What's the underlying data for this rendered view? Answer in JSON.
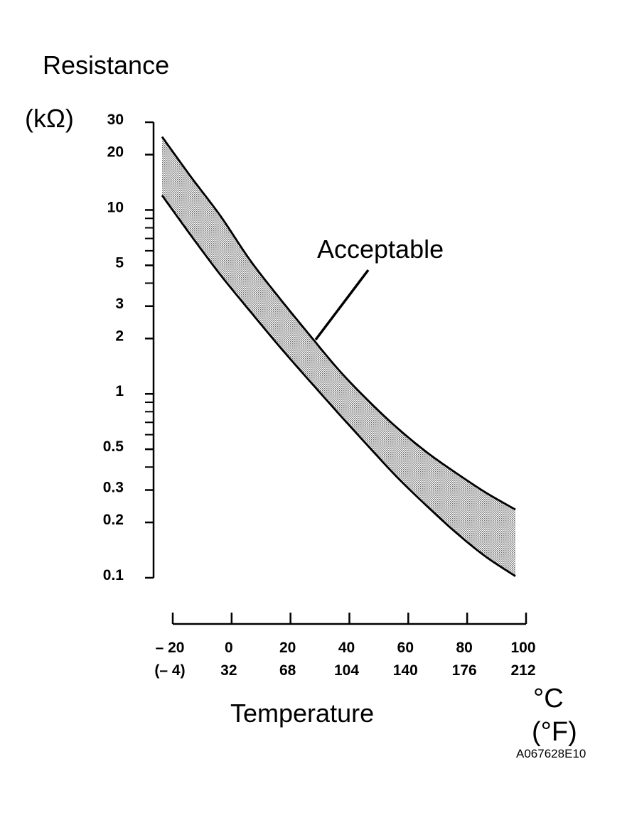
{
  "chart_data": {
    "type": "area",
    "ylabel_line1": "Resistance",
    "ylabel_line2": "(kΩ)",
    "xlabel": "Temperature",
    "unit_c": "°C",
    "unit_f": "(°F)",
    "figure_code": "A067628E10",
    "annotation": "Acceptable",
    "y_scale": "log",
    "ylim": [
      0.1,
      30
    ],
    "xlim": [
      -20,
      100
    ],
    "y_ticks": [
      {
        "value": 30,
        "label": "30"
      },
      {
        "value": 20,
        "label": "20"
      },
      {
        "value": 10,
        "label": "10"
      },
      {
        "value": 5,
        "label": "5"
      },
      {
        "value": 3,
        "label": "3"
      },
      {
        "value": 2,
        "label": "2"
      },
      {
        "value": 1,
        "label": "1"
      },
      {
        "value": 0.5,
        "label": "0.5"
      },
      {
        "value": 0.3,
        "label": "0.3"
      },
      {
        "value": 0.2,
        "label": "0.2"
      },
      {
        "value": 0.1,
        "label": "0.1"
      }
    ],
    "y_minor_ticks": [
      9,
      8,
      7,
      6,
      4,
      0.9,
      0.8,
      0.7,
      0.6,
      0.4
    ],
    "x_ticks": [
      {
        "value": -20,
        "label_c": "– 20",
        "label_f": "(– 4)"
      },
      {
        "value": 0,
        "label_c": "0",
        "label_f": "32"
      },
      {
        "value": 20,
        "label_c": "20",
        "label_f": "68"
      },
      {
        "value": 40,
        "label_c": "40",
        "label_f": "104"
      },
      {
        "value": 60,
        "label_c": "60",
        "label_f": "140"
      },
      {
        "value": 80,
        "label_c": "80",
        "label_f": "176"
      },
      {
        "value": 100,
        "label_c": "100",
        "label_f": "212"
      }
    ],
    "series": [
      {
        "x": [
          -20,
          -10,
          0,
          10,
          20,
          30,
          40,
          50,
          60,
          70,
          80,
          90,
          100
        ],
        "values": [
          25,
          15,
          9.2,
          5.3,
          3.3,
          2.1,
          1.35,
          0.92,
          0.65,
          0.48,
          0.37,
          0.29,
          0.235
        ]
      },
      {
        "x": [
          -20,
          -10,
          0,
          10,
          20,
          30,
          40,
          50,
          60,
          70,
          80,
          90,
          100
        ],
        "values": [
          12,
          7.2,
          4.4,
          2.8,
          1.8,
          1.18,
          0.78,
          0.52,
          0.35,
          0.245,
          0.175,
          0.13,
          0.102
        ]
      }
    ],
    "fill_between_series": true,
    "grid": false
  }
}
